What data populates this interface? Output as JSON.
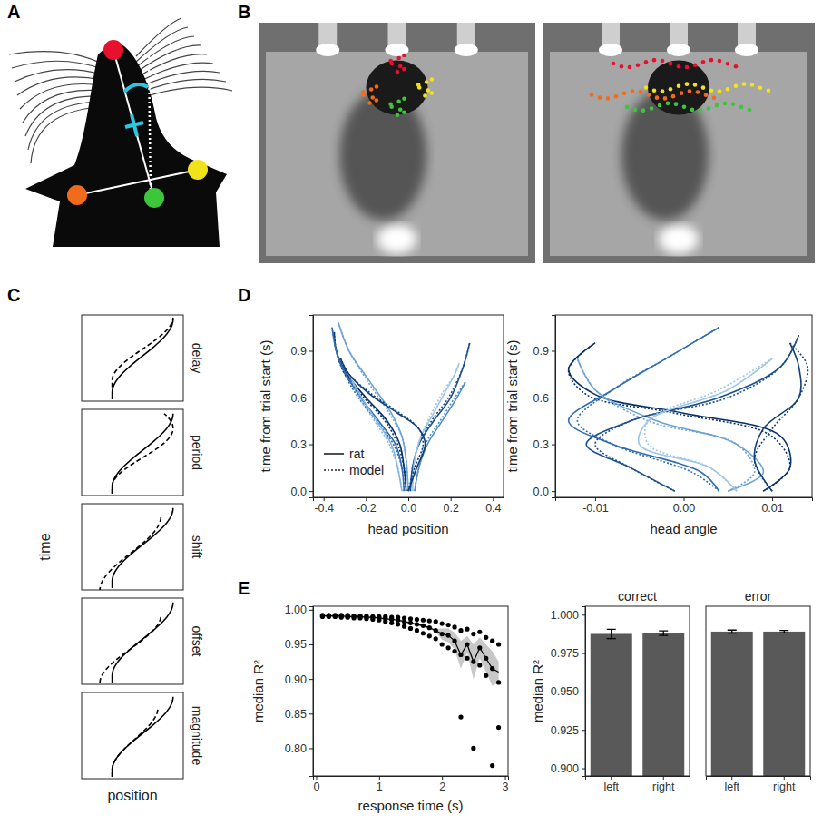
{
  "panel_labels": [
    "A",
    "B",
    "C",
    "D",
    "E"
  ],
  "schematic": {
    "xlabel": "position",
    "ylabel": "time",
    "labels": [
      "delay",
      "period",
      "shift",
      "offset",
      "magnitude"
    ]
  },
  "chart_data": [
    {
      "type": "line",
      "xlabel": "head position",
      "ylabel": "time from trial start (s)",
      "xlim": [
        -0.45,
        0.45
      ],
      "xticks": [
        -0.4,
        -0.2,
        {
          "value": 0,
          "label": "0.0"
        },
        0.2,
        0.4
      ],
      "ylim": [
        -0.04,
        1.13
      ],
      "yticks": [
        {
          "value": 0,
          "label": "0.0"
        },
        0.3,
        0.6,
        0.9
      ],
      "grid": false,
      "legend": "lower left",
      "series": [
        {
          "name": "rat",
          "line_style": "solid",
          "color": "#08306b",
          "x": [
            -0.01,
            -0.02,
            -0.04,
            -0.1,
            -0.2,
            -0.29,
            -0.34,
            -0.35
          ],
          "y": [
            0,
            0.15,
            0.3,
            0.45,
            0.6,
            0.75,
            0.9,
            1.02
          ]
        },
        {
          "name": "model",
          "line_style": "dotted",
          "color": "#08306b",
          "x": [
            -0.01,
            -0.02,
            -0.05,
            -0.11,
            -0.21,
            -0.3,
            -0.34,
            -0.35
          ],
          "y": [
            0,
            0.15,
            0.3,
            0.45,
            0.6,
            0.75,
            0.9,
            1.02
          ]
        },
        {
          "name": "rat",
          "line_style": "solid",
          "color": "#1c4f8f",
          "x": [
            0.01,
            0.02,
            0.05,
            0.12,
            0.2,
            0.26,
            0.29
          ],
          "y": [
            0,
            0.15,
            0.3,
            0.45,
            0.6,
            0.8,
            0.95
          ]
        },
        {
          "name": "model",
          "line_style": "dotted",
          "color": "#1c4f8f",
          "x": [
            0.01,
            0.02,
            0.05,
            0.11,
            0.19,
            0.26,
            0.29
          ],
          "y": [
            0,
            0.15,
            0.3,
            0.45,
            0.6,
            0.8,
            0.95
          ]
        },
        {
          "name": "rat",
          "line_style": "solid",
          "color": "#2f6db3",
          "x": [
            -0.02,
            -0.03,
            -0.06,
            -0.14,
            -0.25,
            -0.33,
            -0.36
          ],
          "y": [
            0,
            0.15,
            0.3,
            0.45,
            0.65,
            0.85,
            1.05
          ]
        },
        {
          "name": "model",
          "line_style": "dotted",
          "color": "#2f6db3",
          "x": [
            -0.02,
            -0.03,
            -0.07,
            -0.15,
            -0.26,
            -0.33,
            -0.36
          ],
          "y": [
            0,
            0.15,
            0.3,
            0.45,
            0.65,
            0.85,
            1.05
          ]
        },
        {
          "name": "rat",
          "line_style": "solid",
          "color": "#6ba3d6",
          "x": [
            0.0,
            -0.01,
            -0.03,
            -0.08,
            -0.18,
            -0.28,
            -0.33
          ],
          "y": [
            0,
            0.2,
            0.35,
            0.5,
            0.7,
            0.9,
            1.08
          ]
        },
        {
          "name": "model",
          "line_style": "dotted",
          "color": "#6ba3d6",
          "x": [
            0.0,
            -0.01,
            -0.03,
            -0.09,
            -0.19,
            -0.28,
            -0.33
          ],
          "y": [
            0,
            0.2,
            0.35,
            0.5,
            0.7,
            0.9,
            1.08
          ]
        },
        {
          "name": "rat",
          "line_style": "solid",
          "color": "#9dc6e8",
          "x": [
            0.02,
            0.03,
            0.06,
            0.12,
            0.18,
            0.22,
            0.24
          ],
          "y": [
            0,
            0.2,
            0.35,
            0.5,
            0.65,
            0.75,
            0.82
          ]
        },
        {
          "name": "model",
          "line_style": "dotted",
          "color": "#9dc6e8",
          "x": [
            0.02,
            0.03,
            0.06,
            0.11,
            0.17,
            0.22,
            0.24
          ],
          "y": [
            0,
            0.2,
            0.35,
            0.5,
            0.65,
            0.75,
            0.82
          ]
        },
        {
          "name": "rat",
          "line_style": "solid",
          "color": "#4f8cc9",
          "x": [
            0.03,
            0.05,
            0.09,
            0.16,
            0.23,
            0.27
          ],
          "y": [
            0,
            0.15,
            0.3,
            0.45,
            0.6,
            0.7
          ]
        },
        {
          "name": "model",
          "line_style": "dotted",
          "color": "#4f8cc9",
          "x": [
            0.03,
            0.05,
            0.08,
            0.15,
            0.22,
            0.27
          ],
          "y": [
            0,
            0.15,
            0.3,
            0.45,
            0.6,
            0.7
          ]
        },
        {
          "name": "rat",
          "line_style": "solid",
          "color": "#123f7a",
          "x": [
            0.0,
            0.04,
            0.08,
            0.05,
            -0.05,
            -0.18,
            -0.28,
            -0.32
          ],
          "y": [
            0,
            0.15,
            0.3,
            0.4,
            0.5,
            0.62,
            0.75,
            0.85
          ]
        },
        {
          "name": "model",
          "line_style": "dotted",
          "color": "#123f7a",
          "x": [
            0.0,
            0.03,
            0.07,
            0.05,
            -0.04,
            -0.17,
            -0.28,
            -0.32
          ],
          "y": [
            0,
            0.15,
            0.3,
            0.4,
            0.5,
            0.62,
            0.75,
            0.85
          ]
        },
        {
          "name": "rat",
          "line_style": "solid",
          "color": "#85b6e0",
          "x": [
            -0.03,
            -0.05,
            -0.08,
            -0.15,
            -0.22,
            -0.27
          ],
          "y": [
            0,
            0.15,
            0.3,
            0.45,
            0.6,
            0.72
          ]
        },
        {
          "name": "model",
          "line_style": "dotted",
          "color": "#85b6e0",
          "x": [
            -0.03,
            -0.05,
            -0.09,
            -0.16,
            -0.23,
            -0.27
          ],
          "y": [
            0,
            0.15,
            0.3,
            0.45,
            0.6,
            0.72
          ]
        }
      ]
    },
    {
      "type": "line",
      "xlabel": "head angle",
      "ylabel": "time from trial start (s)",
      "xlim": [
        -0.0145,
        0.0145
      ],
      "xticks": [
        -0.01,
        {
          "value": 0,
          "label": "0.00"
        },
        0.01
      ],
      "ylim": [
        -0.04,
        1.13
      ],
      "yticks": [
        {
          "value": 0,
          "label": "0.0"
        },
        0.3,
        0.6,
        0.9
      ],
      "grid": false,
      "series": [
        {
          "line_style": "solid",
          "color": "#08306b",
          "x": [
            0.009,
            0.012,
            0.011,
            0.0,
            -0.01,
            -0.013,
            -0.01
          ],
          "y": [
            0,
            0.15,
            0.35,
            0.5,
            0.62,
            0.78,
            0.95
          ]
        },
        {
          "line_style": "dotted",
          "color": "#08306b",
          "x": [
            0.009,
            0.012,
            0.01,
            -0.001,
            -0.011,
            -0.013,
            -0.01
          ],
          "y": [
            0,
            0.15,
            0.35,
            0.5,
            0.62,
            0.78,
            0.95
          ]
        },
        {
          "line_style": "solid",
          "color": "#2f6db3",
          "x": [
            0.004,
            0.002,
            -0.008,
            -0.013,
            -0.008,
            -0.002,
            0.004
          ],
          "y": [
            0,
            0.12,
            0.3,
            0.45,
            0.65,
            0.85,
            1.05
          ]
        },
        {
          "line_style": "dotted",
          "color": "#2f6db3",
          "x": [
            0.004,
            0.001,
            -0.008,
            -0.012,
            -0.008,
            -0.002,
            0.004
          ],
          "y": [
            0,
            0.12,
            0.3,
            0.45,
            0.65,
            0.85,
            1.05
          ]
        },
        {
          "line_style": "solid",
          "color": "#6ba3d6",
          "x": [
            0.005,
            0.009,
            0.006,
            -0.003,
            -0.01,
            -0.012
          ],
          "y": [
            0,
            0.12,
            0.3,
            0.45,
            0.65,
            0.85
          ]
        },
        {
          "line_style": "dotted",
          "color": "#6ba3d6",
          "x": [
            0.005,
            0.008,
            0.006,
            -0.004,
            -0.01,
            -0.012
          ],
          "y": [
            0,
            0.12,
            0.3,
            0.45,
            0.65,
            0.85
          ]
        },
        {
          "line_style": "solid",
          "color": "#1c4f8f",
          "x": [
            -0.001,
            -0.006,
            -0.011,
            -0.006,
            0.004,
            0.011,
            0.013
          ],
          "y": [
            0,
            0.15,
            0.3,
            0.45,
            0.6,
            0.8,
            1.0
          ]
        },
        {
          "line_style": "dotted",
          "color": "#1c4f8f",
          "x": [
            -0.001,
            -0.006,
            -0.01,
            -0.006,
            0.005,
            0.011,
            0.013
          ],
          "y": [
            0,
            0.15,
            0.3,
            0.45,
            0.6,
            0.8,
            1.0
          ]
        },
        {
          "line_style": "solid",
          "color": "#9dc6e8",
          "x": [
            0.006,
            0.003,
            -0.005,
            -0.004,
            0.005,
            0.01
          ],
          "y": [
            0,
            0.15,
            0.3,
            0.45,
            0.65,
            0.85
          ]
        },
        {
          "line_style": "dotted",
          "color": "#9dc6e8",
          "x": [
            0.006,
            0.003,
            -0.004,
            -0.004,
            0.004,
            0.01
          ],
          "y": [
            0,
            0.15,
            0.3,
            0.45,
            0.65,
            0.85
          ]
        },
        {
          "line_style": "solid",
          "color": "#123f7a",
          "x": [
            0.01,
            0.008,
            0.009,
            0.013,
            0.013,
            0.012
          ],
          "y": [
            0,
            0.2,
            0.4,
            0.6,
            0.8,
            0.95
          ]
        },
        {
          "line_style": "dotted",
          "color": "#123f7a",
          "x": [
            0.01,
            0.008,
            0.01,
            0.013,
            0.014,
            0.012
          ],
          "y": [
            0,
            0.2,
            0.4,
            0.6,
            0.8,
            0.95
          ]
        }
      ]
    },
    {
      "type": "scatter",
      "xlabel": "response time (s)",
      "ylabel": "median R²",
      "xlim": [
        -0.05,
        3.05
      ],
      "xticks": [
        0,
        1,
        2,
        3
      ],
      "ylim": [
        0.76,
        1.005
      ],
      "yticks": [
        {
          "value": 0.8,
          "label": "0.80"
        },
        0.85,
        {
          "value": 0.9,
          "label": "0.90"
        },
        0.95,
        {
          "value": 1,
          "label": "1.00"
        }
      ],
      "grid": false,
      "marker": "circle",
      "color": "#000000",
      "x": [
        0.1,
        0.1,
        0.1,
        0.2,
        0.2,
        0.2,
        0.3,
        0.3,
        0.3,
        0.4,
        0.4,
        0.4,
        0.5,
        0.5,
        0.5,
        0.6,
        0.6,
        0.6,
        0.7,
        0.7,
        0.7,
        0.8,
        0.8,
        0.8,
        0.9,
        0.9,
        0.9,
        1.0,
        1.0,
        1.0,
        1.1,
        1.1,
        1.1,
        1.2,
        1.2,
        1.2,
        1.3,
        1.3,
        1.3,
        1.4,
        1.4,
        1.4,
        1.5,
        1.5,
        1.5,
        1.6,
        1.6,
        1.6,
        1.7,
        1.7,
        1.7,
        1.8,
        1.8,
        1.8,
        1.9,
        1.9,
        1.9,
        2.0,
        2.0,
        2.0,
        2.1,
        2.1,
        2.1,
        2.2,
        2.2,
        2.2,
        2.3,
        2.3,
        2.3,
        2.4,
        2.4,
        2.4,
        2.5,
        2.5,
        2.5,
        2.6,
        2.6,
        2.6,
        2.7,
        2.7,
        2.7,
        2.8,
        2.8,
        2.8,
        2.9,
        2.9,
        2.9
      ],
      "y": [
        0.992,
        0.991,
        0.99,
        0.992,
        0.991,
        0.99,
        0.992,
        0.991,
        0.99,
        0.992,
        0.991,
        0.989,
        0.992,
        0.99,
        0.989,
        0.991,
        0.99,
        0.988,
        0.991,
        0.99,
        0.988,
        0.991,
        0.989,
        0.987,
        0.99,
        0.989,
        0.986,
        0.99,
        0.988,
        0.985,
        0.99,
        0.987,
        0.983,
        0.989,
        0.986,
        0.981,
        0.989,
        0.985,
        0.979,
        0.988,
        0.983,
        0.976,
        0.987,
        0.981,
        0.973,
        0.986,
        0.979,
        0.97,
        0.985,
        0.977,
        0.966,
        0.984,
        0.974,
        0.962,
        0.983,
        0.97,
        0.958,
        0.98,
        0.965,
        0.95,
        0.978,
        0.963,
        0.945,
        0.975,
        0.955,
        0.94,
        0.97,
        0.935,
        0.845,
        0.972,
        0.95,
        0.93,
        0.965,
        0.925,
        0.8,
        0.968,
        0.945,
        0.92,
        0.96,
        0.93,
        0.905,
        0.955,
        0.915,
        0.775,
        0.95,
        0.895,
        0.83
      ],
      "summary": {
        "type": "line",
        "color": "#000000",
        "band_color": "#c8c8c8",
        "x": [
          0.1,
          0.2,
          0.3,
          0.4,
          0.5,
          0.6,
          0.7,
          0.8,
          0.9,
          1.0,
          1.1,
          1.2,
          1.3,
          1.4,
          1.5,
          1.6,
          1.7,
          1.8,
          1.9,
          2.0,
          2.1,
          2.2,
          2.3,
          2.4,
          2.5,
          2.6,
          2.7,
          2.8,
          2.9
        ],
        "values": [
          0.991,
          0.991,
          0.991,
          0.991,
          0.99,
          0.99,
          0.99,
          0.989,
          0.989,
          0.988,
          0.987,
          0.986,
          0.985,
          0.983,
          0.981,
          0.979,
          0.977,
          0.974,
          0.97,
          0.965,
          0.963,
          0.955,
          0.935,
          0.95,
          0.925,
          0.945,
          0.93,
          0.915,
          0.91
        ],
        "lower": [
          0.989,
          0.989,
          0.989,
          0.989,
          0.988,
          0.988,
          0.988,
          0.987,
          0.987,
          0.986,
          0.985,
          0.984,
          0.983,
          0.981,
          0.979,
          0.977,
          0.975,
          0.972,
          0.968,
          0.957,
          0.953,
          0.943,
          0.915,
          0.938,
          0.9,
          0.93,
          0.91,
          0.89,
          0.895
        ],
        "upper": [
          0.993,
          0.993,
          0.993,
          0.993,
          0.992,
          0.992,
          0.992,
          0.991,
          0.991,
          0.99,
          0.989,
          0.988,
          0.987,
          0.985,
          0.983,
          0.981,
          0.979,
          0.976,
          0.972,
          0.973,
          0.973,
          0.967,
          0.955,
          0.962,
          0.95,
          0.96,
          0.95,
          0.94,
          0.925
        ]
      }
    },
    {
      "type": "bar",
      "ylabel": "median R²",
      "color": "#595959",
      "grid": false,
      "ylim": [
        0.895,
        1.0055
      ],
      "yticks": [
        {
          "value": 0.9,
          "label": "0.900"
        },
        0.925,
        {
          "value": 0.95,
          "label": "0.950"
        },
        0.975,
        {
          "value": 1,
          "label": "1.000"
        }
      ],
      "facets": [
        {
          "title": "correct",
          "categories": [
            "left",
            "right"
          ],
          "values": [
            0.9875,
            0.988
          ],
          "errors": [
            0.003,
            0.0015
          ]
        },
        {
          "title": "error",
          "categories": [
            "left",
            "right"
          ],
          "values": [
            0.989,
            0.989
          ],
          "errors": [
            0.001,
            0.0008
          ]
        }
      ]
    }
  ]
}
